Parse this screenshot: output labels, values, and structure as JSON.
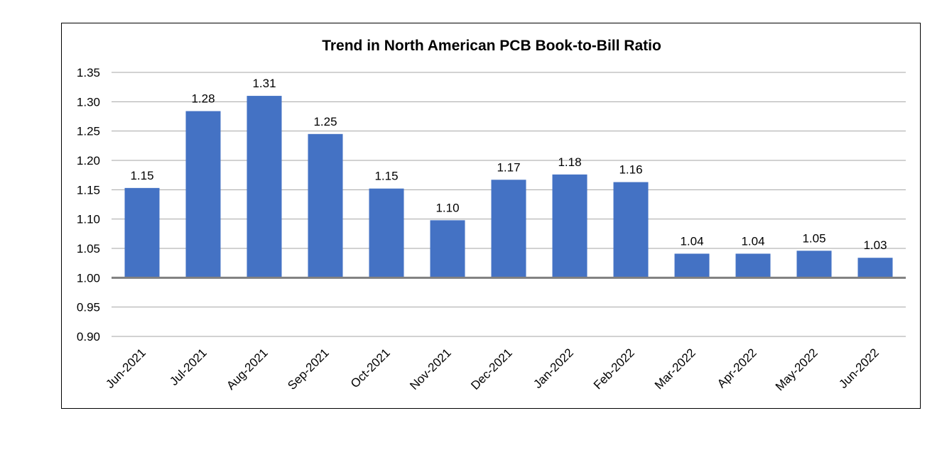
{
  "chart_data": {
    "type": "bar",
    "title": "Trend in North American PCB Book-to-Bill Ratio",
    "xlabel": "",
    "ylabel": "",
    "categories": [
      "Jun-2021",
      "Jul-2021",
      "Aug-2021",
      "Sep-2021",
      "Oct-2021",
      "Nov-2021",
      "Dec-2021",
      "Jan-2022",
      "Feb-2022",
      "Mar-2022",
      "Apr-2022",
      "May-2022",
      "Jun-2022"
    ],
    "values": [
      1.153,
      1.284,
      1.31,
      1.245,
      1.152,
      1.098,
      1.167,
      1.176,
      1.163,
      1.041,
      1.041,
      1.046,
      1.034
    ],
    "data_labels": [
      "1.15",
      "1.28",
      "1.31",
      "1.25",
      "1.15",
      "1.10",
      "1.17",
      "1.18",
      "1.16",
      "1.04",
      "1.04",
      "1.05",
      "1.03"
    ],
    "ylim": [
      0.9,
      1.35
    ],
    "yticks": [
      "0.90",
      "0.95",
      "1.00",
      "1.05",
      "1.10",
      "1.15",
      "1.20",
      "1.25",
      "1.30",
      "1.35"
    ],
    "baseline": 1.0,
    "grid": true,
    "legend": "none",
    "bar_color": "#4472C4",
    "grid_color": "#A6A6A6",
    "baseline_color": "#808080"
  }
}
